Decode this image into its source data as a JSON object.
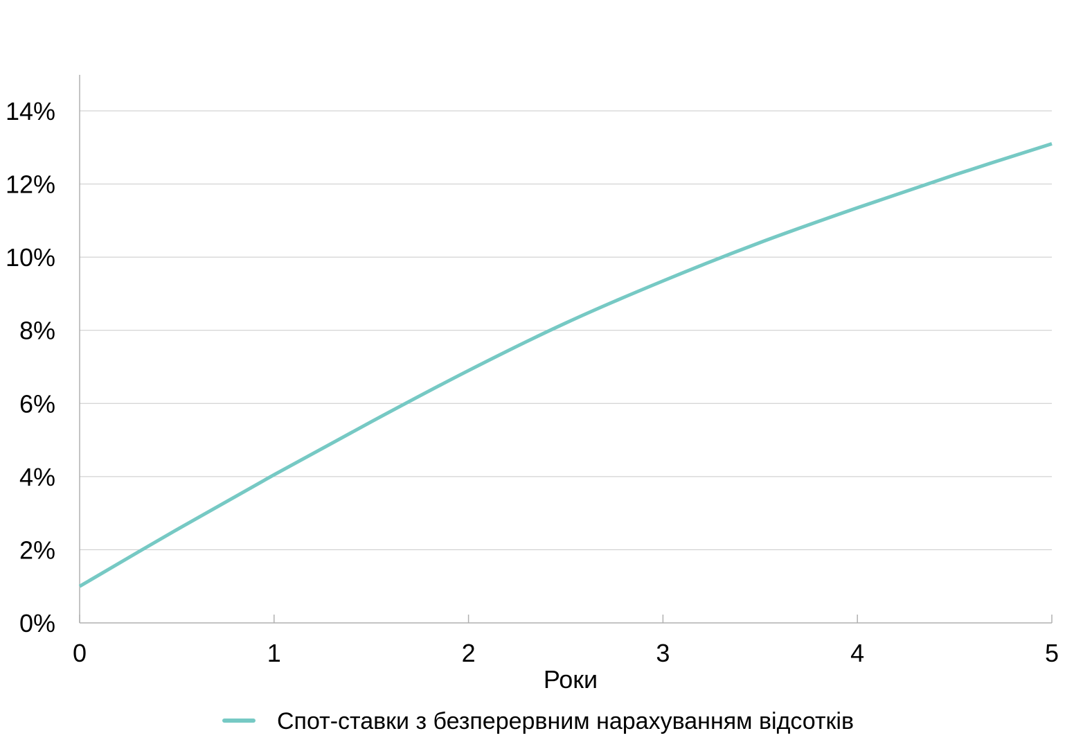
{
  "chart_data": {
    "type": "line",
    "xlabel": "Роки",
    "ylabel": "",
    "xlim": [
      0,
      5
    ],
    "ylim": [
      0,
      0.14
    ],
    "x_ticks": [
      0,
      1,
      2,
      3,
      4,
      5
    ],
    "x_tick_labels": [
      "0",
      "1",
      "2",
      "3",
      "4",
      "5"
    ],
    "y_ticks": [
      0,
      0.02,
      0.04,
      0.06,
      0.08,
      0.1,
      0.12,
      0.14
    ],
    "y_tick_labels": [
      "0%",
      "2%",
      "4%",
      "6%",
      "8%",
      "10%",
      "12%",
      "14%"
    ],
    "grid": "horizontal",
    "legend_position": "bottom-center",
    "series": [
      {
        "name": "Спот-ставки з безперервним нарахуванням відсотків",
        "color": "#76c9c4",
        "x": [
          0,
          0.5,
          1,
          1.5,
          2,
          2.5,
          3,
          3.5,
          4,
          4.5,
          5
        ],
        "values": [
          0.01,
          0.0255,
          0.0405,
          0.055,
          0.069,
          0.082,
          0.0935,
          0.104,
          0.1135,
          0.1225,
          0.131
        ]
      }
    ]
  }
}
